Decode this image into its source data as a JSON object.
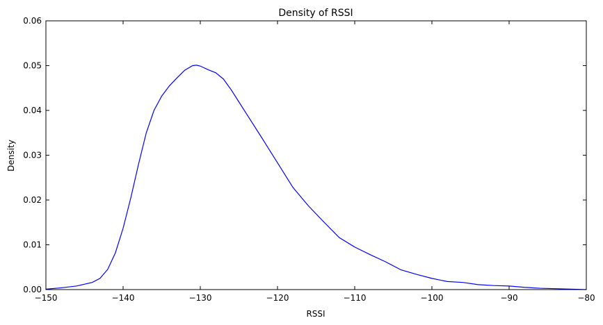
{
  "chart_data": {
    "type": "line",
    "title": "Density of RSSI",
    "xlabel": "RSSI",
    "ylabel": "Density",
    "xlim": [
      -150,
      -80
    ],
    "ylim": [
      0.0,
      0.06
    ],
    "x_ticks": [
      -150,
      -140,
      -130,
      -120,
      -110,
      -100,
      -90,
      -80
    ],
    "x_tick_labels": [
      "−150",
      "−140",
      "−130",
      "−120",
      "−110",
      "−100",
      "−90",
      "−80"
    ],
    "y_ticks": [
      0.0,
      0.01,
      0.02,
      0.03,
      0.04,
      0.05,
      0.06
    ],
    "y_tick_labels": [
      "0.00",
      "0.01",
      "0.02",
      "0.03",
      "0.04",
      "0.05",
      "0.06"
    ],
    "grid": false,
    "legend": "none",
    "series": [
      {
        "color": "#0000ff",
        "x": [
          -150,
          -148,
          -146,
          -144,
          -143,
          -142,
          -141,
          -140,
          -139,
          -138,
          -137,
          -136,
          -135,
          -134,
          -133,
          -132,
          -131,
          -130.5,
          -130,
          -129,
          -128,
          -127,
          -126,
          -125,
          -124,
          -122,
          -120,
          -118,
          -116,
          -114,
          -112,
          -110,
          -108,
          -106,
          -104,
          -102,
          -100,
          -98,
          -96,
          -94,
          -92,
          -90,
          -88,
          -86,
          -84,
          -82,
          -80
        ],
        "y": [
          0.0001,
          0.0004,
          0.0008,
          0.0016,
          0.0025,
          0.0045,
          0.0082,
          0.0137,
          0.0205,
          0.028,
          0.035,
          0.04,
          0.0432,
          0.0455,
          0.0473,
          0.049,
          0.05,
          0.0501,
          0.0499,
          0.0491,
          0.0484,
          0.047,
          0.0446,
          0.0419,
          0.0392,
          0.0338,
          0.0283,
          0.0228,
          0.0187,
          0.0151,
          0.0116,
          0.0095,
          0.0078,
          0.0062,
          0.0044,
          0.0034,
          0.0025,
          0.0018,
          0.0016,
          0.0011,
          0.0009,
          0.0008,
          0.0005,
          0.0003,
          0.0002,
          0.0001,
          0.0
        ]
      }
    ]
  }
}
